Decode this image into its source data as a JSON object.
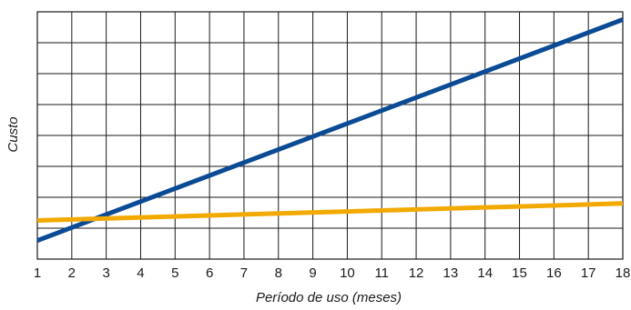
{
  "chart_data": {
    "type": "line",
    "xlabel": "Período de uso (meses)",
    "ylabel": "Custo",
    "x_ticks": [
      "1",
      "2",
      "3",
      "4",
      "5",
      "6",
      "7",
      "8",
      "9",
      "10",
      "11",
      "12",
      "13",
      "14",
      "15",
      "16",
      "17",
      "18"
    ],
    "xlim": [
      1,
      18
    ],
    "ylim": [
      0,
      8
    ],
    "grid": true,
    "legend": "none",
    "series": [
      {
        "color": "#0b4a94",
        "x": [
          1,
          18
        ],
        "y": [
          0.6,
          7.75
        ]
      },
      {
        "color": "#f2a900",
        "x": [
          1,
          18
        ],
        "y": [
          1.25,
          1.8
        ]
      }
    ]
  }
}
